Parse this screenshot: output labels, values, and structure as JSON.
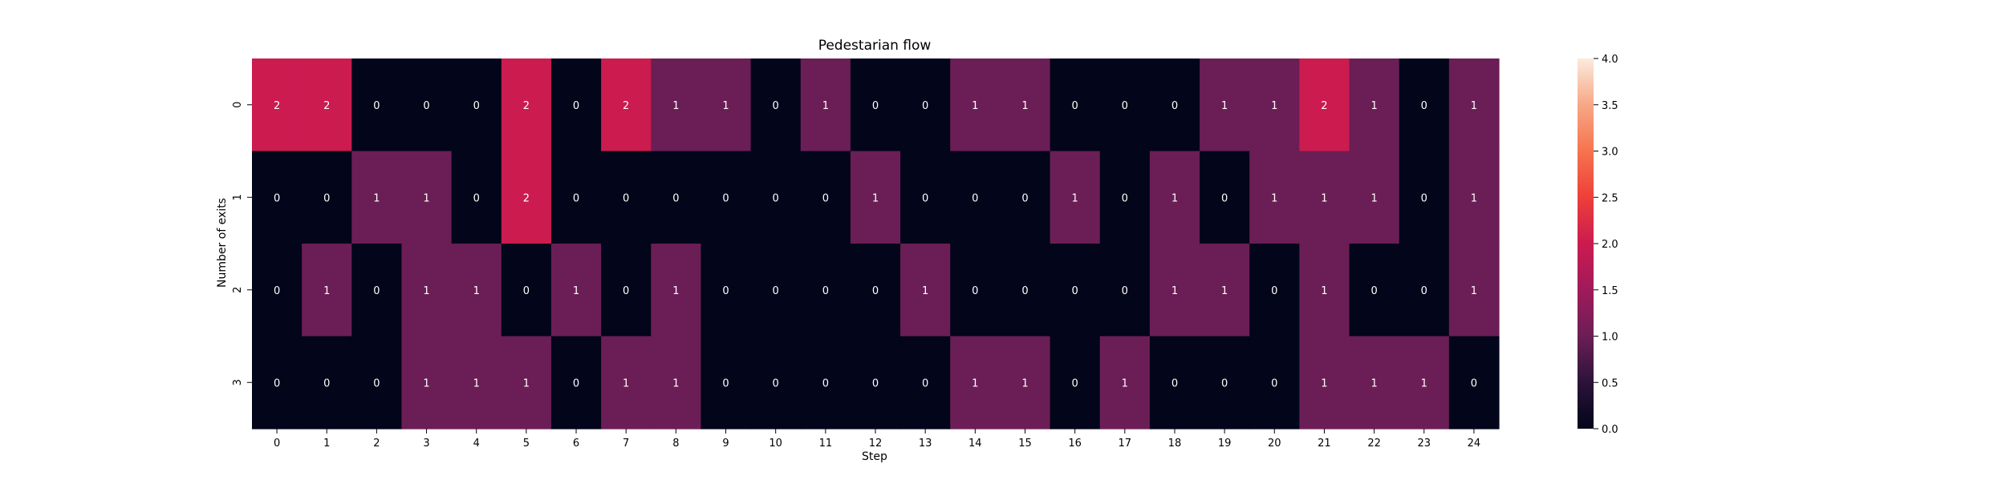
{
  "chart_data": {
    "type": "heatmap",
    "title": "Pedestarian flow",
    "xlabel": "Step",
    "ylabel": "Number of exits",
    "x_ticks": [
      "0",
      "1",
      "2",
      "3",
      "4",
      "5",
      "6",
      "7",
      "8",
      "9",
      "10",
      "11",
      "12",
      "13",
      "14",
      "15",
      "16",
      "17",
      "18",
      "19",
      "20",
      "21",
      "22",
      "23",
      "24"
    ],
    "y_ticks": [
      "0",
      "1",
      "2",
      "3"
    ],
    "values": [
      [
        2,
        2,
        0,
        0,
        0,
        2,
        0,
        2,
        1,
        1,
        0,
        1,
        0,
        0,
        1,
        1,
        0,
        0,
        0,
        1,
        1,
        2,
        1,
        0,
        1
      ],
      [
        0,
        0,
        1,
        1,
        0,
        2,
        0,
        0,
        0,
        0,
        0,
        0,
        1,
        0,
        0,
        0,
        1,
        0,
        1,
        0,
        1,
        1,
        1,
        0,
        1
      ],
      [
        0,
        1,
        0,
        1,
        1,
        0,
        1,
        0,
        1,
        0,
        0,
        0,
        0,
        1,
        0,
        0,
        0,
        0,
        1,
        1,
        0,
        1,
        0,
        0,
        1
      ],
      [
        0,
        0,
        0,
        1,
        1,
        1,
        0,
        1,
        1,
        0,
        0,
        0,
        0,
        0,
        1,
        1,
        0,
        1,
        0,
        0,
        0,
        1,
        1,
        1,
        0
      ]
    ],
    "colorbar": {
      "range": [
        0,
        4.0
      ],
      "ticks": [
        "0.0",
        "0.5",
        "1.0",
        "1.5",
        "2.0",
        "2.5",
        "3.0",
        "3.5",
        "4.0"
      ],
      "colormap": "rocket"
    },
    "colors": {
      "value_0": "#03051a",
      "value_1": "#6b1e55",
      "value_2": "#cb1b4f",
      "annotation_text": "#ffffff"
    }
  }
}
